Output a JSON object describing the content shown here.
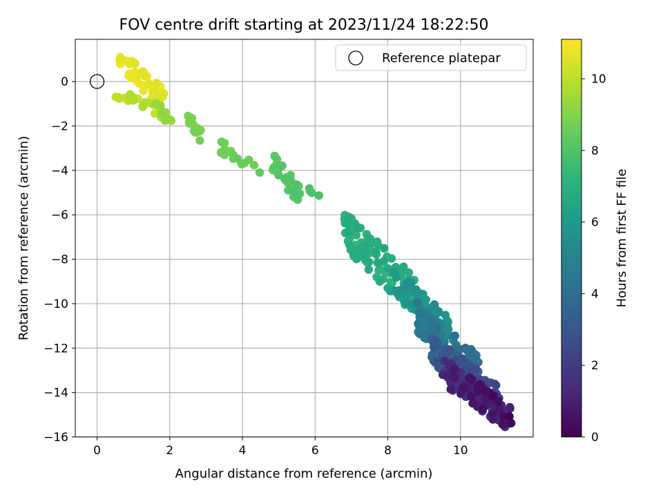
{
  "chart_data": {
    "type": "scatter",
    "title": "FOV centre drift starting at 2023/11/24 18:22:50",
    "xlabel": "Angular distance from reference (arcmin)",
    "ylabel": "Rotation from reference (arcmin)",
    "xlim": [
      -0.6,
      12.0
    ],
    "ylim": [
      -16.0,
      1.9
    ],
    "xticks": [
      0,
      2,
      4,
      6,
      8,
      10
    ],
    "yticks": [
      -16,
      -14,
      -12,
      -10,
      -8,
      -6,
      -4,
      -2,
      0
    ],
    "grid": true,
    "legend": {
      "placement": "top-right",
      "entries": [
        {
          "label": "Reference platepar",
          "marker": "open-circle"
        }
      ]
    },
    "reference_point": {
      "x": 0,
      "y": 0
    },
    "colorbar": {
      "label": "Hours from first FF file",
      "colormap": "viridis",
      "range": [
        0,
        11.1
      ],
      "ticks": [
        0,
        2,
        4,
        6,
        8,
        10
      ]
    },
    "colormap_stops": [
      "#440154",
      "#482878",
      "#3e4989",
      "#31688e",
      "#26828e",
      "#1f9e89",
      "#35b779",
      "#6ece58",
      "#b5de2b",
      "#fde725"
    ],
    "clusters": [
      {
        "x": [
          0.6,
          1.85
        ],
        "y": [
          -0.9,
          1.1
        ],
        "t": [
          10.4,
          11.1
        ],
        "n": 45
      },
      {
        "x": [
          0.5,
          1.8
        ],
        "y": [
          -1.4,
          -0.5
        ],
        "t": [
          9.6,
          10.3
        ],
        "n": 22
      },
      {
        "x": [
          1.6,
          2.2
        ],
        "y": [
          -2.1,
          -1.0
        ],
        "t": [
          9.0,
          9.6
        ],
        "n": 8
      },
      {
        "x": [
          2.5,
          2.9
        ],
        "y": [
          -2.6,
          -1.6
        ],
        "t": [
          8.7,
          9.1
        ],
        "n": 16
      },
      {
        "x": [
          3.4,
          4.5
        ],
        "y": [
          -4.0,
          -2.9
        ],
        "t": [
          8.3,
          8.8
        ],
        "n": 16
      },
      {
        "x": [
          4.8,
          5.6
        ],
        "y": [
          -5.2,
          -3.6
        ],
        "t": [
          7.9,
          8.4
        ],
        "n": 30
      },
      {
        "x": [
          5.8,
          6.2
        ],
        "y": [
          -5.2,
          -4.8
        ],
        "t": [
          7.8,
          8.0
        ],
        "n": 4
      },
      {
        "x": [
          6.8,
          8.8
        ],
        "y": [
          -9.8,
          -6.6
        ],
        "t": [
          6.3,
          7.4
        ],
        "n": 110
      },
      {
        "x": [
          8.0,
          9.7
        ],
        "y": [
          -11.0,
          -8.8
        ],
        "t": [
          5.3,
          6.4
        ],
        "n": 70
      },
      {
        "x": [
          8.8,
          10.5
        ],
        "y": [
          -13.0,
          -10.6
        ],
        "t": [
          3.8,
          5.4
        ],
        "n": 110
      },
      {
        "x": [
          9.2,
          11.0
        ],
        "y": [
          -14.3,
          -12.0
        ],
        "t": [
          2.2,
          3.9
        ],
        "n": 130
      },
      {
        "x": [
          9.5,
          11.4
        ],
        "y": [
          -15.2,
          -13.0
        ],
        "t": [
          0.0,
          2.3
        ],
        "n": 120
      }
    ]
  }
}
